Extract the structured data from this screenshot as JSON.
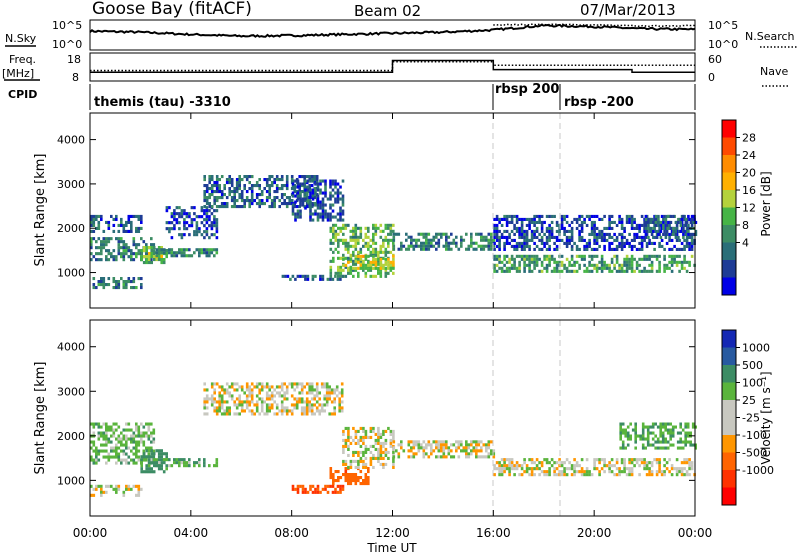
{
  "header": {
    "station": "Goose Bay (fitACF)",
    "beam": "Beam 02",
    "date": "07/Mar/2013"
  },
  "params": {
    "nsky_label": "N.Sky",
    "nsky_ticks": [
      "10^5",
      "10^0"
    ],
    "nsearch_label": "N.Search",
    "nsearch_ticks": [
      "10^5",
      "10^0"
    ],
    "freq_label_top": "Freq.",
    "freq_label_unit": "[MHz]",
    "freq_ticks": [
      "18",
      "8"
    ],
    "nave_label": "Nave",
    "nave_ticks": [
      "60",
      "0"
    ],
    "cpid_label": "CPID",
    "cpid_segments": [
      {
        "label": "themis (tau) -3310",
        "start": "00:00",
        "end": "16:00"
      },
      {
        "label": "rbsp 200",
        "start": "16:00",
        "end": "18:40"
      },
      {
        "label": "rbsp -200",
        "start": "18:40",
        "end": "24:00"
      }
    ]
  },
  "axes": {
    "ylabel": "Slant Range [km]",
    "y_ticks": [
      "4000",
      "3000",
      "2000",
      "1000"
    ],
    "x_ticks": [
      "00:00",
      "04:00",
      "08:00",
      "12:00",
      "16:00",
      "20:00",
      "00:00"
    ],
    "xlabel": "Time UT"
  },
  "colorbars": {
    "power": {
      "label": "Power [dB]",
      "ticks": [
        "28",
        "24",
        "20",
        "16",
        "12",
        "8",
        "4"
      ],
      "colors": [
        "#ff0000",
        "#ff4a00",
        "#ff8c00",
        "#ffb000",
        "#b4d23c",
        "#46b446",
        "#3c8c64",
        "#2a6e78",
        "#1e3c96",
        "#0000e6"
      ]
    },
    "velocity": {
      "label": "Velocity [m s⁻¹]",
      "ticks": [
        "1000",
        "500",
        "100",
        "25",
        "-25",
        "-100",
        "-500",
        "-1000"
      ],
      "colors": [
        "#1428b4",
        "#285aa0",
        "#3c8c64",
        "#5ab43c",
        "#c8c8c0",
        "#c8c8c0",
        "#ff9600",
        "#ff6400",
        "#ff3200",
        "#ff0000"
      ]
    }
  },
  "chart_data": [
    {
      "type": "line",
      "title": "N.Sky / N.Search",
      "x_range_hours": [
        0,
        24
      ],
      "series": [
        {
          "name": "N.Sky",
          "x": [
            0,
            2,
            4,
            6,
            8,
            10,
            12,
            14,
            16,
            18,
            20,
            22,
            24
          ],
          "y_log10": [
            3.2,
            3.0,
            2.6,
            2.3,
            2.4,
            2.6,
            2.8,
            3.0,
            3.4,
            4.2,
            4.0,
            3.6,
            3.5
          ]
        },
        {
          "name": "N.Search",
          "x": [
            16,
            18,
            20,
            22,
            24
          ],
          "y_log10": [
            4.3,
            4.4,
            4.3,
            4.1,
            4.2
          ]
        }
      ]
    },
    {
      "type": "line",
      "title": "Freq. / Nave",
      "x_range_hours": [
        0,
        24
      ],
      "series": [
        {
          "name": "Freq.",
          "x": [
            0,
            12,
            12,
            16,
            16,
            21.5,
            21.5,
            24
          ],
          "y": [
            11,
            11,
            15.5,
            15.5,
            12,
            12,
            11,
            11
          ]
        },
        {
          "name": "Nave",
          "x": [
            0,
            12,
            12,
            16,
            16,
            24
          ],
          "y": [
            22,
            22,
            42,
            42,
            34,
            34
          ]
        }
      ]
    },
    {
      "type": "heatmap",
      "title": "Power",
      "xlabel": "Time UT",
      "ylabel": "Slant Range [km]",
      "x_range_hours": [
        0,
        24
      ],
      "ylim": [
        200,
        4600
      ],
      "value_label": "Power [dB]",
      "value_range": [
        0,
        32
      ],
      "regions": [
        {
          "t": [
            0,
            2.5
          ],
          "r": [
            1300,
            1800
          ],
          "v": 9
        },
        {
          "t": [
            0,
            2
          ],
          "r": [
            1900,
            2300
          ],
          "v": 6
        },
        {
          "t": [
            0,
            2
          ],
          "r": [
            650,
            900
          ],
          "v": 9
        },
        {
          "t": [
            2,
            3
          ],
          "r": [
            1250,
            1600
          ],
          "v": 15
        },
        {
          "t": [
            2.5,
            5
          ],
          "r": [
            1350,
            1550
          ],
          "v": 10
        },
        {
          "t": [
            3,
            5
          ],
          "r": [
            1800,
            2500
          ],
          "v": 5
        },
        {
          "t": [
            4.5,
            9
          ],
          "r": [
            2500,
            3200
          ],
          "v": 7
        },
        {
          "t": [
            8,
            10
          ],
          "r": [
            2200,
            3100
          ],
          "v": 6
        },
        {
          "t": [
            9.5,
            12
          ],
          "r": [
            900,
            2100
          ],
          "v": 14
        },
        {
          "t": [
            10,
            12
          ],
          "r": [
            1100,
            1400
          ],
          "v": 18
        },
        {
          "t": [
            7.5,
            10
          ],
          "r": [
            850,
            950
          ],
          "v": 7
        },
        {
          "t": [
            12,
            16
          ],
          "r": [
            1500,
            1900
          ],
          "v": 10
        },
        {
          "t": [
            16,
            24
          ],
          "r": [
            1000,
            1400
          ],
          "v": 12
        },
        {
          "t": [
            16,
            24
          ],
          "r": [
            1500,
            2300
          ],
          "v": 5
        },
        {
          "t": [
            22,
            24
          ],
          "r": [
            1800,
            2300
          ],
          "v": 7
        }
      ]
    },
    {
      "type": "heatmap",
      "title": "Velocity",
      "xlabel": "Time UT",
      "ylabel": "Slant Range [km]",
      "x_range_hours": [
        0,
        24
      ],
      "ylim": [
        200,
        4600
      ],
      "value_label": "Velocity [m s⁻¹]",
      "value_range": [
        -1000,
        1000
      ],
      "regions": [
        {
          "t": [
            0,
            2
          ],
          "r": [
            650,
            900
          ],
          "v": 0
        },
        {
          "t": [
            0,
            2.5
          ],
          "r": [
            1400,
            2300
          ],
          "v": 60
        },
        {
          "t": [
            2,
            3
          ],
          "r": [
            1200,
            1700
          ],
          "v": 150
        },
        {
          "t": [
            2.5,
            5
          ],
          "r": [
            1300,
            1500
          ],
          "v": 80
        },
        {
          "t": [
            4.5,
            10
          ],
          "r": [
            2500,
            3200
          ],
          "v": 0
        },
        {
          "t": [
            8,
            10
          ],
          "r": [
            700,
            900
          ],
          "v": -300
        },
        {
          "t": [
            9.5,
            11
          ],
          "r": [
            900,
            1300
          ],
          "v": -250
        },
        {
          "t": [
            10,
            12
          ],
          "r": [
            1300,
            2200
          ],
          "v": 0
        },
        {
          "t": [
            12,
            16
          ],
          "r": [
            1500,
            1900
          ],
          "v": 0
        },
        {
          "t": [
            16,
            24
          ],
          "r": [
            1100,
            1500
          ],
          "v": 0
        },
        {
          "t": [
            21,
            24
          ],
          "r": [
            1700,
            2300
          ],
          "v": 90
        }
      ]
    }
  ]
}
